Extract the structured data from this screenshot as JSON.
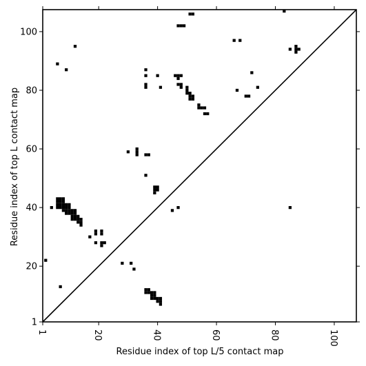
{
  "chart_data": {
    "type": "scatter",
    "title": "",
    "xlabel": "Residue index of top L/5 contact map",
    "ylabel": "Residue index of top L contact map",
    "xlim": [
      1,
      107.5
    ],
    "ylim": [
      1,
      107.5
    ],
    "x_ticks": [
      1,
      20,
      40,
      60,
      80,
      100
    ],
    "y_ticks": [
      1,
      20,
      40,
      60,
      80,
      100
    ],
    "diagonal": true,
    "grid": false,
    "marker": "square",
    "marker_color": "#000000",
    "points": [
      [
        2,
        22
      ],
      [
        4,
        40
      ],
      [
        6,
        89
      ],
      [
        9,
        87
      ],
      [
        12,
        95
      ],
      [
        7,
        13
      ],
      [
        6,
        43
      ],
      [
        7,
        43
      ],
      [
        8,
        43
      ],
      [
        6,
        42
      ],
      [
        7,
        42
      ],
      [
        8,
        42
      ],
      [
        6,
        41
      ],
      [
        7,
        41
      ],
      [
        8,
        41
      ],
      [
        9,
        41
      ],
      [
        10,
        41
      ],
      [
        6,
        40
      ],
      [
        7,
        40
      ],
      [
        8,
        40
      ],
      [
        9,
        40
      ],
      [
        10,
        40
      ],
      [
        8,
        39
      ],
      [
        9,
        39
      ],
      [
        10,
        39
      ],
      [
        11,
        39
      ],
      [
        12,
        39
      ],
      [
        9,
        38
      ],
      [
        10,
        38
      ],
      [
        11,
        38
      ],
      [
        12,
        38
      ],
      [
        11,
        37
      ],
      [
        12,
        37
      ],
      [
        13,
        37
      ],
      [
        11,
        36
      ],
      [
        12,
        36
      ],
      [
        13,
        36
      ],
      [
        14,
        36
      ],
      [
        13,
        35
      ],
      [
        14,
        35
      ],
      [
        14,
        34
      ],
      [
        17,
        30
      ],
      [
        19,
        32
      ],
      [
        19,
        31
      ],
      [
        21,
        32
      ],
      [
        21,
        31
      ],
      [
        19,
        28
      ],
      [
        21,
        28
      ],
      [
        22,
        28
      ],
      [
        21,
        27
      ],
      [
        28,
        21
      ],
      [
        31,
        21
      ],
      [
        32,
        19
      ],
      [
        30,
        59
      ],
      [
        33,
        60
      ],
      [
        33,
        59
      ],
      [
        33,
        58
      ],
      [
        36,
        58
      ],
      [
        37,
        58
      ],
      [
        36,
        51
      ],
      [
        36,
        87
      ],
      [
        36,
        85
      ],
      [
        36,
        82
      ],
      [
        36,
        81
      ],
      [
        40,
        85
      ],
      [
        41,
        81
      ],
      [
        39,
        47
      ],
      [
        40,
        47
      ],
      [
        39,
        46
      ],
      [
        40,
        46
      ],
      [
        39,
        45
      ],
      [
        45,
        39
      ],
      [
        47,
        40
      ],
      [
        36,
        12
      ],
      [
        37,
        12
      ],
      [
        36,
        11
      ],
      [
        37,
        11
      ],
      [
        38,
        11
      ],
      [
        39,
        11
      ],
      [
        38,
        10
      ],
      [
        39,
        10
      ],
      [
        38,
        9
      ],
      [
        39,
        9
      ],
      [
        40,
        9
      ],
      [
        41,
        9
      ],
      [
        40,
        8
      ],
      [
        41,
        8
      ],
      [
        41,
        7
      ],
      [
        46,
        85
      ],
      [
        47,
        85
      ],
      [
        48,
        85
      ],
      [
        47,
        84
      ],
      [
        47,
        82
      ],
      [
        48,
        82
      ],
      [
        48,
        81
      ],
      [
        50,
        81
      ],
      [
        50,
        80
      ],
      [
        50,
        79
      ],
      [
        51,
        79
      ],
      [
        51,
        78
      ],
      [
        52,
        78
      ],
      [
        51,
        77
      ],
      [
        52,
        77
      ],
      [
        54,
        75
      ],
      [
        54,
        74
      ],
      [
        55,
        74
      ],
      [
        56,
        74
      ],
      [
        56,
        72
      ],
      [
        57,
        72
      ],
      [
        47,
        102
      ],
      [
        48,
        102
      ],
      [
        49,
        102
      ],
      [
        51,
        106
      ],
      [
        52,
        106
      ],
      [
        66,
        97
      ],
      [
        68,
        97
      ],
      [
        67,
        80
      ],
      [
        70,
        78
      ],
      [
        71,
        78
      ],
      [
        72,
        86
      ],
      [
        74,
        81
      ],
      [
        83,
        107
      ],
      [
        85,
        94
      ],
      [
        87,
        95
      ],
      [
        87,
        94
      ],
      [
        88,
        94
      ],
      [
        87,
        93
      ],
      [
        85,
        40
      ]
    ]
  }
}
